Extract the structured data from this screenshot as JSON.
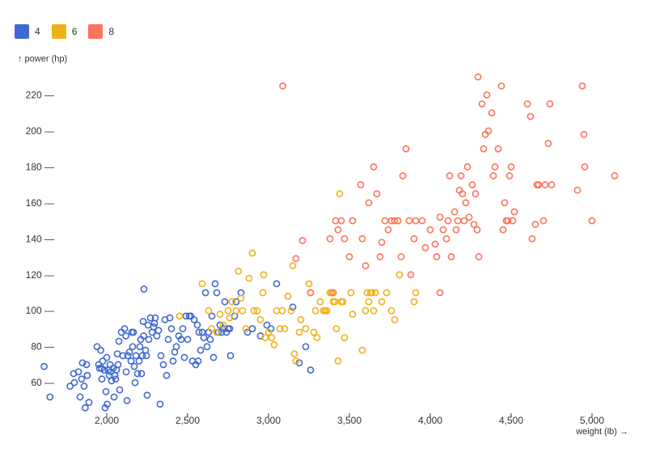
{
  "chart_data": {
    "type": "scatter",
    "xlabel": "weight (lb) →",
    "ylabel": "↑ power (hp)",
    "xlim": [
      1580,
      5200
    ],
    "ylim": [
      43,
      235
    ],
    "x_ticks": [
      2000,
      2500,
      3000,
      3500,
      4000,
      4500,
      5000
    ],
    "x_tick_labels": [
      "2,000",
      "2,500",
      "3,000",
      "3,500",
      "4,000",
      "4,500",
      "5,000"
    ],
    "y_ticks": [
      60,
      80,
      100,
      120,
      140,
      160,
      180,
      200,
      220
    ],
    "y_tick_labels": [
      "60 —",
      "80 —",
      "100 —",
      "120 —",
      "140 —",
      "160 —",
      "180 —",
      "200 —",
      "220 —"
    ],
    "grid": false,
    "legend_position": "top-left",
    "series": [
      {
        "name": "4",
        "color": "#4269d0",
        "points": [
          [
            1613,
            69
          ],
          [
            1649,
            52
          ],
          [
            1773,
            58
          ],
          [
            1795,
            65
          ],
          [
            1800,
            60
          ],
          [
            1825,
            66
          ],
          [
            1835,
            52
          ],
          [
            1845,
            62
          ],
          [
            1850,
            71
          ],
          [
            1860,
            58
          ],
          [
            1867,
            46
          ],
          [
            1875,
            70
          ],
          [
            1880,
            64
          ],
          [
            1890,
            49
          ],
          [
            1940,
            80
          ],
          [
            1950,
            70
          ],
          [
            1955,
            68
          ],
          [
            1963,
            78
          ],
          [
            1968,
            68
          ],
          [
            1970,
            62
          ],
          [
            1975,
            72
          ],
          [
            1985,
            67
          ],
          [
            1990,
            46
          ],
          [
            1995,
            55
          ],
          [
            2000,
            74
          ],
          [
            2003,
            48
          ],
          [
            2010,
            67
          ],
          [
            2015,
            64
          ],
          [
            2020,
            70
          ],
          [
            2025,
            66
          ],
          [
            2030,
            61
          ],
          [
            2040,
            68
          ],
          [
            2045,
            52
          ],
          [
            2050,
            64
          ],
          [
            2055,
            62
          ],
          [
            2060,
            67
          ],
          [
            2065,
            76
          ],
          [
            2070,
            70
          ],
          [
            2075,
            83
          ],
          [
            2080,
            56
          ],
          [
            2090,
            88
          ],
          [
            2100,
            75
          ],
          [
            2110,
            90
          ],
          [
            2118,
            86
          ],
          [
            2120,
            66
          ],
          [
            2125,
            50
          ],
          [
            2130,
            75
          ],
          [
            2140,
            77
          ],
          [
            2150,
            72
          ],
          [
            2155,
            88
          ],
          [
            2160,
            80
          ],
          [
            2165,
            88
          ],
          [
            2170,
            69
          ],
          [
            2175,
            60
          ],
          [
            2180,
            75
          ],
          [
            2190,
            65
          ],
          [
            2200,
            72
          ],
          [
            2205,
            80
          ],
          [
            2210,
            84
          ],
          [
            2215,
            65
          ],
          [
            2220,
            75
          ],
          [
            2225,
            94
          ],
          [
            2228,
            86
          ],
          [
            2230,
            112
          ],
          [
            2240,
            78
          ],
          [
            2245,
            75
          ],
          [
            2250,
            53
          ],
          [
            2255,
            92
          ],
          [
            2260,
            84
          ],
          [
            2270,
            96
          ],
          [
            2280,
            88
          ],
          [
            2290,
            91
          ],
          [
            2295,
            93
          ],
          [
            2300,
            96
          ],
          [
            2310,
            86
          ],
          [
            2320,
            89
          ],
          [
            2330,
            48
          ],
          [
            2335,
            75
          ],
          [
            2350,
            70
          ],
          [
            2360,
            95
          ],
          [
            2370,
            64
          ],
          [
            2380,
            84
          ],
          [
            2390,
            96
          ],
          [
            2400,
            90
          ],
          [
            2410,
            72
          ],
          [
            2420,
            77
          ],
          [
            2430,
            80
          ],
          [
            2445,
            86
          ],
          [
            2460,
            84
          ],
          [
            2470,
            90
          ],
          [
            2480,
            74
          ],
          [
            2490,
            97
          ],
          [
            2500,
            84
          ],
          [
            2510,
            97
          ],
          [
            2520,
            97
          ],
          [
            2530,
            72
          ],
          [
            2540,
            95
          ],
          [
            2550,
            70
          ],
          [
            2560,
            92
          ],
          [
            2565,
            72
          ],
          [
            2570,
            88
          ],
          [
            2580,
            78
          ],
          [
            2590,
            88
          ],
          [
            2600,
            85
          ],
          [
            2610,
            110
          ],
          [
            2620,
            80
          ],
          [
            2630,
            88
          ],
          [
            2640,
            84
          ],
          [
            2650,
            97
          ],
          [
            2660,
            74
          ],
          [
            2670,
            115
          ],
          [
            2680,
            110
          ],
          [
            2690,
            88
          ],
          [
            2700,
            92
          ],
          [
            2710,
            88
          ],
          [
            2720,
            90
          ],
          [
            2730,
            105
          ],
          [
            2740,
            88
          ],
          [
            2750,
            90
          ],
          [
            2760,
            90
          ],
          [
            2765,
            75
          ],
          [
            2790,
            97
          ],
          [
            2800,
            105
          ],
          [
            2830,
            110
          ],
          [
            2870,
            88
          ],
          [
            2900,
            90
          ],
          [
            2950,
            86
          ],
          [
            2990,
            92
          ],
          [
            3015,
            90
          ],
          [
            3050,
            115
          ],
          [
            3150,
            102
          ],
          [
            3190,
            71
          ],
          [
            3230,
            80
          ],
          [
            3260,
            67
          ]
        ]
      },
      {
        "name": "6",
        "color": "#efb118",
        "points": [
          [
            2450,
            97
          ],
          [
            2590,
            115
          ],
          [
            2630,
            100
          ],
          [
            2648,
            90
          ],
          [
            2680,
            88
          ],
          [
            2700,
            98
          ],
          [
            2720,
            92
          ],
          [
            2750,
            100
          ],
          [
            2760,
            96
          ],
          [
            2774,
            105
          ],
          [
            2800,
            100
          ],
          [
            2814,
            122
          ],
          [
            2830,
            107
          ],
          [
            2840,
            100
          ],
          [
            2860,
            90
          ],
          [
            2880,
            118
          ],
          [
            2900,
            132
          ],
          [
            2910,
            100
          ],
          [
            2930,
            100
          ],
          [
            2950,
            95
          ],
          [
            2965,
            110
          ],
          [
            2970,
            120
          ],
          [
            2980,
            85
          ],
          [
            3000,
            88
          ],
          [
            3020,
            85
          ],
          [
            3035,
            81
          ],
          [
            3050,
            100
          ],
          [
            3070,
            90
          ],
          [
            3085,
            100
          ],
          [
            3100,
            90
          ],
          [
            3120,
            108
          ],
          [
            3140,
            100
          ],
          [
            3150,
            125
          ],
          [
            3160,
            76
          ],
          [
            3170,
            72
          ],
          [
            3190,
            88
          ],
          [
            3200,
            95
          ],
          [
            3230,
            90
          ],
          [
            3250,
            115
          ],
          [
            3260,
            110
          ],
          [
            3280,
            88
          ],
          [
            3290,
            100
          ],
          [
            3300,
            85
          ],
          [
            3320,
            105
          ],
          [
            3340,
            100
          ],
          [
            3350,
            100
          ],
          [
            3360,
            100
          ],
          [
            3380,
            110
          ],
          [
            3390,
            110
          ],
          [
            3400,
            105
          ],
          [
            3410,
            105
          ],
          [
            3420,
            90
          ],
          [
            3430,
            72
          ],
          [
            3440,
            165
          ],
          [
            3450,
            105
          ],
          [
            3460,
            105
          ],
          [
            3470,
            85
          ],
          [
            3510,
            110
          ],
          [
            3520,
            98
          ],
          [
            3580,
            78
          ],
          [
            3600,
            100
          ],
          [
            3610,
            110
          ],
          [
            3620,
            105
          ],
          [
            3630,
            110
          ],
          [
            3640,
            110
          ],
          [
            3650,
            100
          ],
          [
            3660,
            110
          ],
          [
            3700,
            105
          ],
          [
            3730,
            110
          ],
          [
            3760,
            100
          ],
          [
            3780,
            95
          ],
          [
            3800,
            150
          ],
          [
            3810,
            120
          ],
          [
            3900,
            105
          ],
          [
            3910,
            110
          ]
        ]
      },
      {
        "name": "8",
        "color": "#ff725c",
        "points": [
          [
            3088,
            225
          ],
          [
            3170,
            129
          ],
          [
            3210,
            139
          ],
          [
            3260,
            110
          ],
          [
            3380,
            140
          ],
          [
            3400,
            110
          ],
          [
            3415,
            150
          ],
          [
            3430,
            145
          ],
          [
            3450,
            150
          ],
          [
            3470,
            140
          ],
          [
            3500,
            130
          ],
          [
            3520,
            150
          ],
          [
            3570,
            170
          ],
          [
            3580,
            140
          ],
          [
            3600,
            125
          ],
          [
            3620,
            160
          ],
          [
            3650,
            180
          ],
          [
            3670,
            165
          ],
          [
            3690,
            130
          ],
          [
            3700,
            138
          ],
          [
            3720,
            150
          ],
          [
            3740,
            145
          ],
          [
            3760,
            150
          ],
          [
            3780,
            150
          ],
          [
            3800,
            150
          ],
          [
            3820,
            130
          ],
          [
            3830,
            175
          ],
          [
            3850,
            190
          ],
          [
            3870,
            150
          ],
          [
            3880,
            120
          ],
          [
            3900,
            140
          ],
          [
            3910,
            150
          ],
          [
            3950,
            150
          ],
          [
            3970,
            135
          ],
          [
            4000,
            145
          ],
          [
            4030,
            137
          ],
          [
            4040,
            130
          ],
          [
            4060,
            152
          ],
          [
            4060,
            110
          ],
          [
            4080,
            145
          ],
          [
            4100,
            140
          ],
          [
            4110,
            150
          ],
          [
            4120,
            175
          ],
          [
            4130,
            130
          ],
          [
            4150,
            155
          ],
          [
            4160,
            145
          ],
          [
            4170,
            150
          ],
          [
            4180,
            167
          ],
          [
            4190,
            175
          ],
          [
            4200,
            165
          ],
          [
            4210,
            150
          ],
          [
            4220,
            160
          ],
          [
            4230,
            180
          ],
          [
            4240,
            152
          ],
          [
            4260,
            170
          ],
          [
            4270,
            148
          ],
          [
            4280,
            165
          ],
          [
            4290,
            145
          ],
          [
            4295,
            230
          ],
          [
            4300,
            130
          ],
          [
            4320,
            215
          ],
          [
            4330,
            190
          ],
          [
            4340,
            198
          ],
          [
            4350,
            220
          ],
          [
            4360,
            200
          ],
          [
            4380,
            210
          ],
          [
            4390,
            175
          ],
          [
            4400,
            180
          ],
          [
            4420,
            190
          ],
          [
            4440,
            225
          ],
          [
            4450,
            145
          ],
          [
            4460,
            160
          ],
          [
            4470,
            150
          ],
          [
            4480,
            150
          ],
          [
            4490,
            175
          ],
          [
            4500,
            180
          ],
          [
            4510,
            150
          ],
          [
            4520,
            155
          ],
          [
            4600,
            215
          ],
          [
            4620,
            208
          ],
          [
            4630,
            140
          ],
          [
            4650,
            148
          ],
          [
            4660,
            170
          ],
          [
            4670,
            170
          ],
          [
            4700,
            150
          ],
          [
            4710,
            170
          ],
          [
            4730,
            193
          ],
          [
            4740,
            215
          ],
          [
            4750,
            170
          ],
          [
            4910,
            167
          ],
          [
            4940,
            225
          ],
          [
            4950,
            198
          ],
          [
            4955,
            180
          ],
          [
            5000,
            150
          ],
          [
            5140,
            175
          ]
        ]
      }
    ]
  }
}
